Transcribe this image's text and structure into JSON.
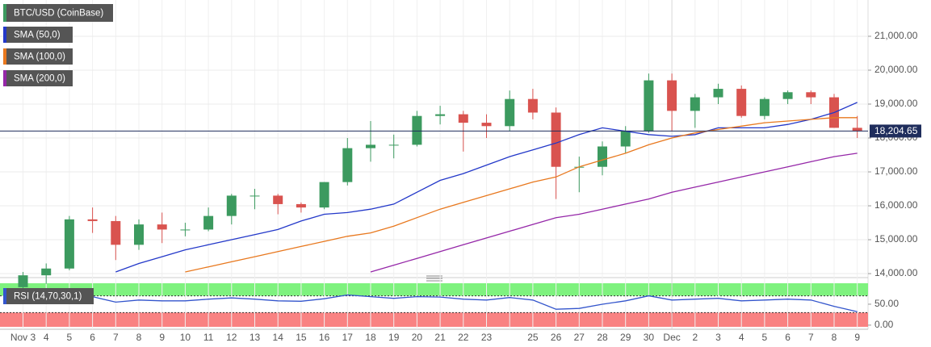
{
  "chart_data": [
    {
      "type": "candlestick",
      "name": "BTC/USD (CoinBase)",
      "up_color": "#3c9a5f",
      "down_color": "#d9534f",
      "categories": [
        "Nov 3",
        "4",
        "5",
        "6",
        "7",
        "8",
        "9",
        "10",
        "11",
        "12",
        "13",
        "14",
        "15",
        "16",
        "17",
        "18",
        "19",
        "20",
        "21",
        "22",
        "23",
        null,
        "25",
        "26",
        "27",
        "28",
        "29",
        "30",
        "Dec",
        "2",
        "3",
        "4",
        "5",
        "6",
        "7",
        "8",
        "9"
      ],
      "open": [
        13600,
        13950,
        14150,
        15600,
        15550,
        14850,
        15450,
        15300,
        15300,
        15700,
        16300,
        16300,
        16050,
        15950,
        16700,
        17700,
        17800,
        17800,
        18650,
        18700,
        18450,
        18350,
        19150,
        18750,
        17150,
        17150,
        17750,
        18200,
        19700,
        18800,
        19200,
        19450,
        18650,
        19150,
        19350,
        19200,
        18300
      ],
      "high": [
        14050,
        14300,
        15700,
        15950,
        15700,
        15600,
        15800,
        15500,
        15950,
        16350,
        16500,
        16350,
        16100,
        16700,
        18000,
        18500,
        18100,
        18800,
        18950,
        18800,
        18700,
        19400,
        19450,
        18900,
        17450,
        17900,
        18350,
        19900,
        19900,
        19300,
        19600,
        19550,
        19200,
        19400,
        19400,
        19300,
        18650
      ],
      "low": [
        13500,
        13700,
        14100,
        15200,
        14400,
        14700,
        14900,
        15100,
        15250,
        15450,
        15900,
        15750,
        15800,
        15900,
        16600,
        17300,
        17400,
        17750,
        18400,
        17600,
        18000,
        18200,
        18550,
        16200,
        16400,
        16900,
        17550,
        18150,
        18200,
        18300,
        19000,
        18600,
        18550,
        19000,
        19000,
        18300,
        18000
      ],
      "close": [
        13950,
        14150,
        15600,
        15550,
        14850,
        15450,
        15300,
        15300,
        15700,
        16300,
        16300,
        16050,
        15950,
        16700,
        17700,
        17800,
        17800,
        18650,
        18700,
        18450,
        18350,
        19150,
        18750,
        17150,
        17150,
        17750,
        18200,
        19700,
        18800,
        19200,
        19450,
        18650,
        19150,
        19350,
        19200,
        18300,
        18205
      ],
      "series": [
        {
          "name": "SMA (50,0)",
          "color": "#2338c9",
          "values": [
            null,
            null,
            null,
            null,
            14050,
            14300,
            14500,
            14700,
            14850,
            15000,
            15150,
            15300,
            15550,
            15750,
            15800,
            15900,
            16050,
            16400,
            16750,
            16950,
            17200,
            17450,
            17650,
            17850,
            18100,
            18300,
            18200,
            18100,
            18050,
            18100,
            18300,
            18300,
            18300,
            18400,
            18550,
            18750,
            19050
          ]
        },
        {
          "name": "SMA (100,0)",
          "color": "#e8781e",
          "values": [
            null,
            null,
            null,
            null,
            null,
            null,
            null,
            14050,
            14200,
            14350,
            14500,
            14650,
            14800,
            14950,
            15100,
            15200,
            15400,
            15650,
            15900,
            16100,
            16300,
            16500,
            16700,
            16850,
            17150,
            17350,
            17550,
            17800,
            18000,
            18150,
            18250,
            18350,
            18450,
            18500,
            18550,
            18600,
            18600
          ]
        },
        {
          "name": "SMA (200,0)",
          "color": "#9527a8",
          "values": [
            null,
            null,
            null,
            null,
            null,
            null,
            null,
            null,
            null,
            null,
            null,
            null,
            null,
            null,
            null,
            14050,
            14250,
            14450,
            14650,
            14850,
            15050,
            15250,
            15450,
            15650,
            15750,
            15900,
            16050,
            16200,
            16400,
            16550,
            16700,
            16850,
            17000,
            17150,
            17300,
            17450,
            17550
          ]
        }
      ],
      "ylim": [
        13930,
        22070
      ],
      "yticks": [
        {
          "value": 14000,
          "label": "14,000.00"
        },
        {
          "value": 15000,
          "label": "15,000.00"
        },
        {
          "value": 16000,
          "label": "16,000.00"
        },
        {
          "value": 17000,
          "label": "17,000.00"
        },
        {
          "value": 18000,
          "label": "18,000.00"
        },
        {
          "value": 19000,
          "label": "19,000.00"
        },
        {
          "value": 20000,
          "label": "20,000.00"
        },
        {
          "value": 21000,
          "label": "21,000.00"
        }
      ],
      "last_price": {
        "value": 18204.65,
        "label": "18,204.65",
        "color": "#1f2d5c"
      },
      "grid": true
    },
    {
      "type": "line",
      "name": "RSI (14,70,30,1)",
      "color": "#3355cc",
      "values": [
        62,
        65,
        72,
        68,
        55,
        60,
        58,
        58,
        62,
        65,
        62,
        58,
        57,
        63,
        72,
        68,
        64,
        68,
        67,
        62,
        60,
        66,
        60,
        38,
        40,
        50,
        58,
        70,
        60,
        62,
        64,
        58,
        60,
        62,
        60,
        45,
        32
      ],
      "levels": [
        30,
        70
      ],
      "upper_color": "#7ef27e",
      "lower_color": "#f98282",
      "ylim": [
        -4,
        100
      ],
      "yticks": [
        {
          "value": 0,
          "label": "0.00"
        },
        {
          "value": 50,
          "label": "50.00"
        }
      ]
    }
  ]
}
